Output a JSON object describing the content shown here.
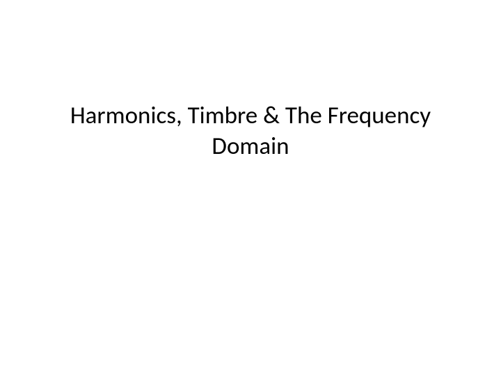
{
  "slide": {
    "title": "Harmonics, Timbre & The Frequency Domain",
    "background_color": "#ffffff",
    "title_color": "#000000",
    "title_fontsize": 35,
    "title_font_family": "Calibri"
  }
}
